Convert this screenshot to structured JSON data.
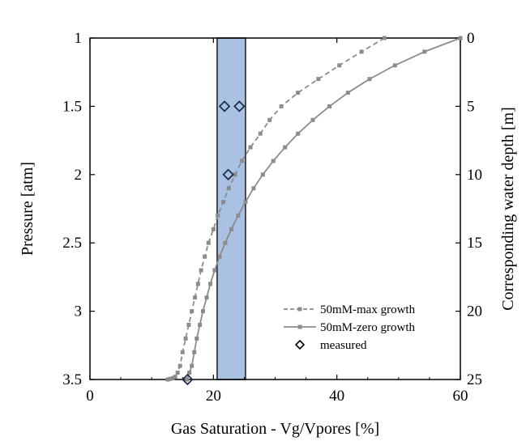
{
  "chart_data": {
    "type": "line",
    "title": "",
    "xlabel": "Gas Saturation - Vg/Vpores [%]",
    "ylabel": "Pressure [atm]",
    "y2label": "Corresponding water depth [m]",
    "xlim": [
      0,
      60
    ],
    "ylim": [
      1,
      3.5
    ],
    "y_inverted": true,
    "y2lim": [
      0,
      25
    ],
    "x_ticks": [
      "0",
      "20",
      "40",
      "60"
    ],
    "y_ticks": [
      "1",
      "1.5",
      "2",
      "2.5",
      "3",
      "3.5"
    ],
    "y2_ticks": [
      "0",
      "5",
      "10",
      "15",
      "20",
      "25"
    ],
    "grid": false,
    "legend_position": "bottom-right",
    "band": {
      "x_start": 20.6,
      "x_end": 25.2,
      "color": "#a9c1e3",
      "edge_color": "#1a1a1a"
    },
    "series": [
      {
        "name": "50mM-max growth",
        "style": "dashed",
        "color": "#8c8c8c",
        "x": [
          47.7,
          44.0,
          40.4,
          37.0,
          33.7,
          31.0,
          29.1,
          27.6,
          26.0,
          24.6,
          23.5,
          22.5,
          21.6,
          20.7,
          20.0,
          19.2,
          18.6,
          18.0,
          17.5,
          17.0,
          16.5,
          16.0,
          15.5,
          15.0,
          14.6,
          14.2,
          13.8,
          13.4,
          13.0,
          12.6
        ],
        "y": [
          1.0,
          1.1,
          1.2,
          1.3,
          1.4,
          1.5,
          1.6,
          1.7,
          1.8,
          1.9,
          2.0,
          2.1,
          2.2,
          2.3,
          2.4,
          2.5,
          2.6,
          2.7,
          2.8,
          2.9,
          3.0,
          3.1,
          3.2,
          3.3,
          3.4,
          3.45,
          3.48,
          3.49,
          3.495,
          3.5
        ]
      },
      {
        "name": "50mM-zero growth",
        "style": "solid",
        "color": "#8c8c8c",
        "x": [
          60.0,
          54.2,
          49.4,
          45.3,
          41.8,
          38.8,
          36.1,
          33.7,
          31.6,
          29.7,
          28.0,
          26.5,
          25.2,
          24.0,
          22.9,
          21.9,
          21.0,
          20.2,
          19.5,
          18.9,
          18.3,
          17.8,
          17.3,
          16.9,
          16.5,
          16.1,
          15.7
        ],
        "y": [
          1.0,
          1.1,
          1.2,
          1.3,
          1.4,
          1.5,
          1.6,
          1.7,
          1.8,
          1.9,
          2.0,
          2.1,
          2.2,
          2.3,
          2.4,
          2.5,
          2.6,
          2.7,
          2.8,
          2.9,
          3.0,
          3.1,
          3.2,
          3.3,
          3.4,
          3.45,
          3.5
        ]
      },
      {
        "name": "measured",
        "style": "marker",
        "marker": "diamond",
        "color": "#1f2f4f",
        "x": [
          21.8,
          24.2,
          22.4,
          15.8
        ],
        "y": [
          1.5,
          1.5,
          2.0,
          3.5
        ]
      }
    ]
  }
}
